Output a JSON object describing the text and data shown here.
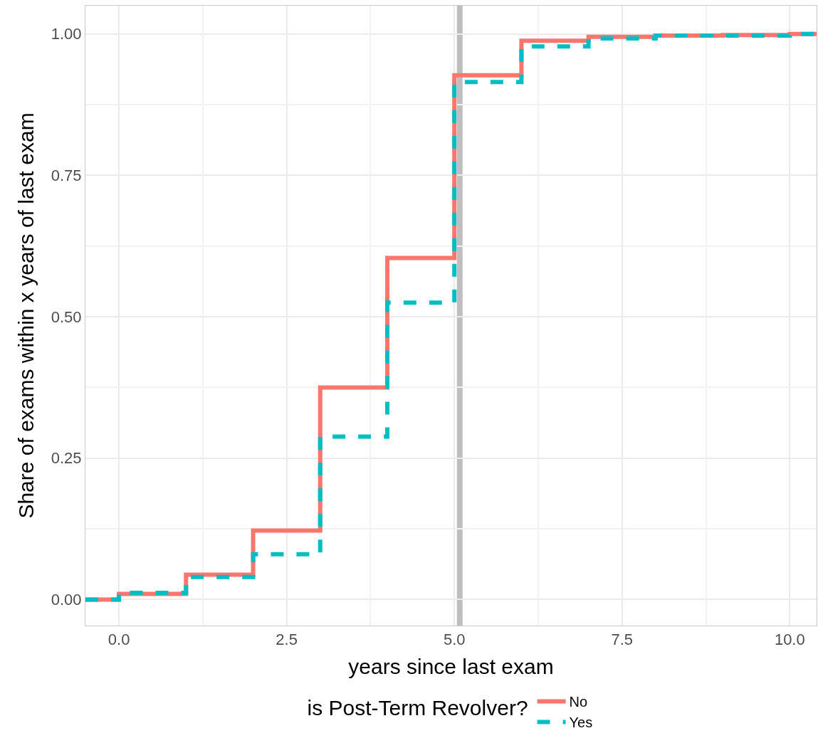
{
  "chart_data": {
    "type": "step",
    "xlabel": "years since last exam",
    "ylabel": "Share of exams within x years of last exam",
    "legend_title": "is Post-Term Revolver?",
    "x": [
      -0.5,
      0,
      1,
      2,
      3,
      4,
      5,
      6,
      7,
      8,
      9,
      10,
      10.4
    ],
    "series": [
      {
        "name": "No",
        "color": "#f8766d",
        "line_style": "solid",
        "values": [
          0,
          0.01,
          0.044,
          0.122,
          0.375,
          0.604,
          0.927,
          0.988,
          0.995,
          0.997,
          0.998,
          1.0,
          1.0
        ]
      },
      {
        "name": "Yes",
        "color": "#00bfc4",
        "line_style": "dashed",
        "values": [
          0,
          0.012,
          0.04,
          0.08,
          0.288,
          0.525,
          0.915,
          0.978,
          0.992,
          0.997,
          0.997,
          1.0,
          1.0
        ]
      }
    ],
    "xlim": [
      -0.5,
      10.4
    ],
    "ylim": [
      -0.046,
      1.05
    ],
    "xticks": [
      {
        "value": 0,
        "label": "0.0"
      },
      {
        "value": 2.5,
        "label": "2.5"
      },
      {
        "value": 5,
        "label": "5.0"
      },
      {
        "value": 7.5,
        "label": "7.5"
      },
      {
        "value": 10,
        "label": "10.0"
      }
    ],
    "yticks": [
      {
        "value": 0,
        "label": "0.00"
      },
      {
        "value": 0.25,
        "label": "0.25"
      },
      {
        "value": 0.5,
        "label": "0.50"
      },
      {
        "value": 0.75,
        "label": "0.75"
      },
      {
        "value": 1,
        "label": "1.00"
      }
    ],
    "ref_lines": [
      {
        "axis": "x",
        "value": 5.08,
        "label": null,
        "color": "#bebebe"
      }
    ],
    "grid": true,
    "legend": "bottom"
  }
}
